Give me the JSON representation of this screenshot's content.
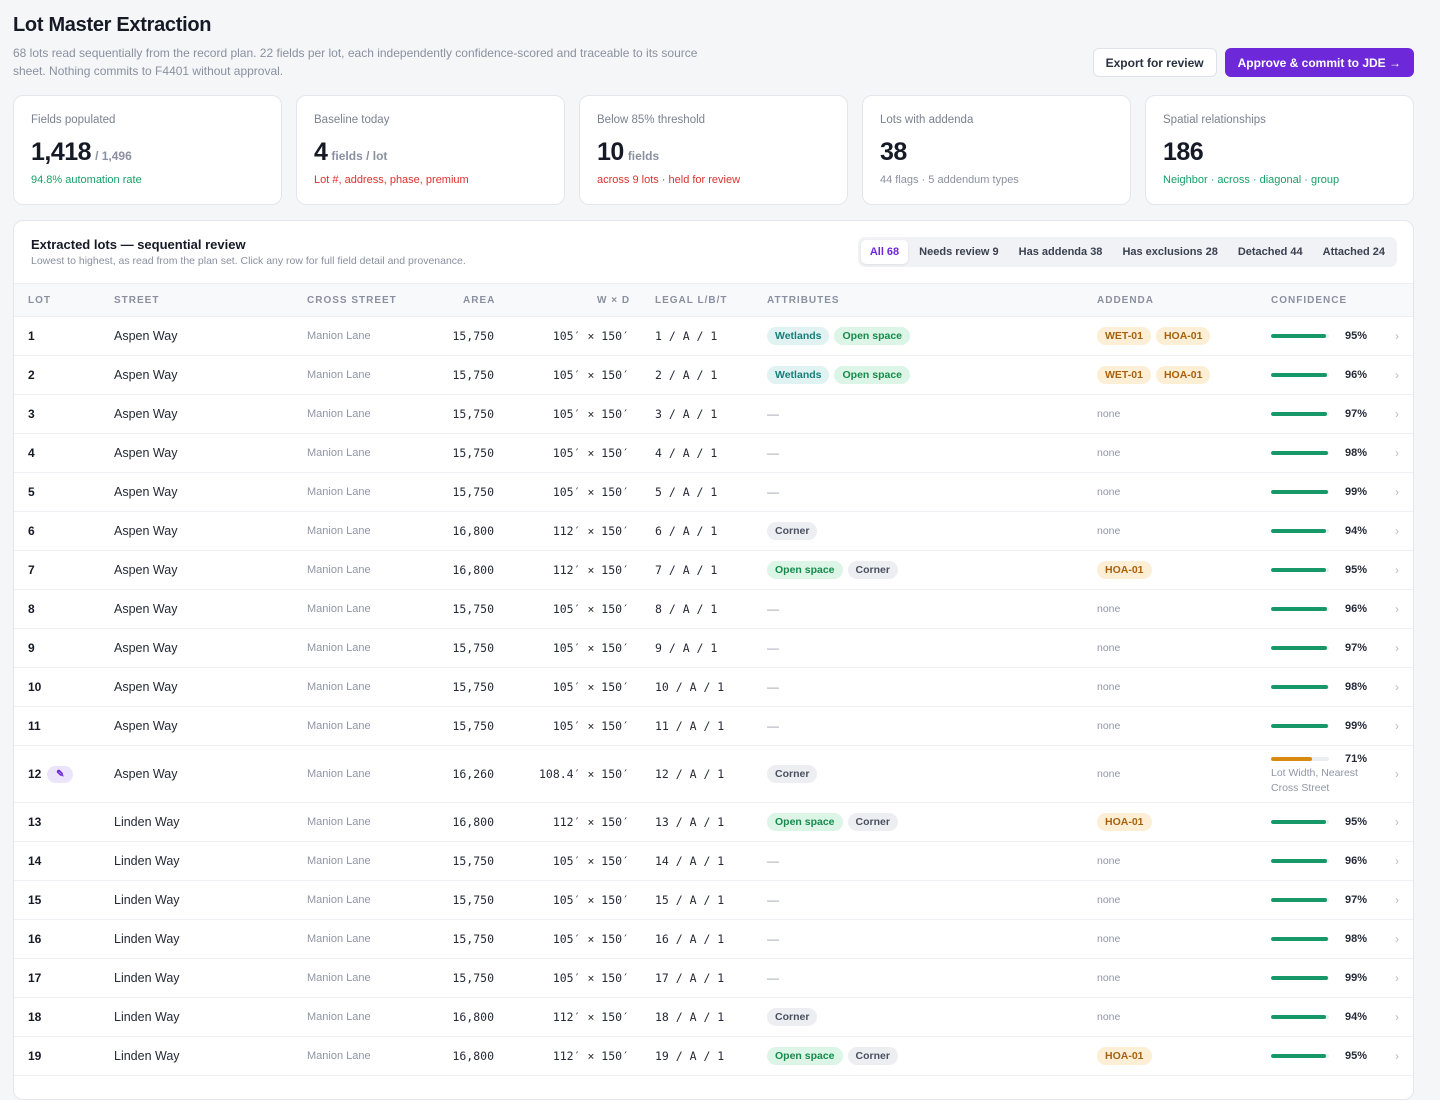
{
  "header": {
    "title": "Lot Master Extraction",
    "subtitle": "68 lots read sequentially from the record plan. 22 fields per lot, each independently confidence-scored and traceable to its source sheet. Nothing commits to F4401 without approval.",
    "export_label": "Export for review",
    "approve_label": "Approve & commit to JDE →"
  },
  "cards": [
    {
      "label": "Fields populated",
      "value": "1,418",
      "unit": "/ 1,496",
      "note": "94.8% automation rate",
      "tone": "green"
    },
    {
      "label": "Baseline today",
      "value": "4",
      "unit": "fields / lot",
      "note": "Lot #, address, phase, premium",
      "tone": "red"
    },
    {
      "label": "Below 85% threshold",
      "value": "10",
      "unit": "fields",
      "note": "across 9 lots · held for review",
      "tone": "red"
    },
    {
      "label": "Lots with addenda",
      "value": "38",
      "unit": "",
      "note": "44 flags · 5 addendum types",
      "tone": "gray"
    },
    {
      "label": "Spatial relationships",
      "value": "186",
      "unit": "",
      "note": "Neighbor · across · diagonal · group",
      "tone": "green"
    }
  ],
  "panel": {
    "title": "Extracted lots — sequential review",
    "subtitle": "Lowest to highest, as read from the plan set. Click any row for full field detail and provenance.",
    "filters": [
      "All 68",
      "Needs review 9",
      "Has addenda 38",
      "Has exclusions 28",
      "Detached 44",
      "Attached 24"
    ],
    "columns": {
      "lot": "LOT",
      "street": "STREET",
      "cross": "CROSS STREET",
      "area": "AREA",
      "wd": "W × D",
      "legal": "LEGAL L/B/T",
      "attributes": "ATTRIBUTES",
      "addenda": "ADDENDA",
      "confidence": "CONFIDENCE"
    }
  },
  "rows": [
    {
      "lot": "1",
      "street": "Aspen Way",
      "cross": "Manion Lane",
      "area": "15,750",
      "wd": "105′ × 150′",
      "legal": "1 / A / 1",
      "attributes": [
        "Wetlands",
        "Open space"
      ],
      "addenda": [
        "WET-01",
        "HOA-01"
      ],
      "confidence": 95
    },
    {
      "lot": "2",
      "street": "Aspen Way",
      "cross": "Manion Lane",
      "area": "15,750",
      "wd": "105′ × 150′",
      "legal": "2 / A / 1",
      "attributes": [
        "Wetlands",
        "Open space"
      ],
      "addenda": [
        "WET-01",
        "HOA-01"
      ],
      "confidence": 96
    },
    {
      "lot": "3",
      "street": "Aspen Way",
      "cross": "Manion Lane",
      "area": "15,750",
      "wd": "105′ × 150′",
      "legal": "3 / A / 1",
      "attributes": [],
      "addenda": [],
      "confidence": 97
    },
    {
      "lot": "4",
      "street": "Aspen Way",
      "cross": "Manion Lane",
      "area": "15,750",
      "wd": "105′ × 150′",
      "legal": "4 / A / 1",
      "attributes": [],
      "addenda": [],
      "confidence": 98
    },
    {
      "lot": "5",
      "street": "Aspen Way",
      "cross": "Manion Lane",
      "area": "15,750",
      "wd": "105′ × 150′",
      "legal": "5 / A / 1",
      "attributes": [],
      "addenda": [],
      "confidence": 99
    },
    {
      "lot": "6",
      "street": "Aspen Way",
      "cross": "Manion Lane",
      "area": "16,800",
      "wd": "112′ × 150′",
      "legal": "6 / A / 1",
      "attributes": [
        "Corner"
      ],
      "addenda": [],
      "confidence": 94
    },
    {
      "lot": "7",
      "street": "Aspen Way",
      "cross": "Manion Lane",
      "area": "16,800",
      "wd": "112′ × 150′",
      "legal": "7 / A / 1",
      "attributes": [
        "Open space",
        "Corner"
      ],
      "addenda": [
        "HOA-01"
      ],
      "confidence": 95
    },
    {
      "lot": "8",
      "street": "Aspen Way",
      "cross": "Manion Lane",
      "area": "15,750",
      "wd": "105′ × 150′",
      "legal": "8 / A / 1",
      "attributes": [],
      "addenda": [],
      "confidence": 96
    },
    {
      "lot": "9",
      "street": "Aspen Way",
      "cross": "Manion Lane",
      "area": "15,750",
      "wd": "105′ × 150′",
      "legal": "9 / A / 1",
      "attributes": [],
      "addenda": [],
      "confidence": 97
    },
    {
      "lot": "10",
      "street": "Aspen Way",
      "cross": "Manion Lane",
      "area": "15,750",
      "wd": "105′ × 150′",
      "legal": "10 / A / 1",
      "attributes": [],
      "addenda": [],
      "confidence": 98
    },
    {
      "lot": "11",
      "street": "Aspen Way",
      "cross": "Manion Lane",
      "area": "15,750",
      "wd": "105′ × 150′",
      "legal": "11 / A / 1",
      "attributes": [],
      "addenda": [],
      "confidence": 99
    },
    {
      "lot": "12",
      "street": "Aspen Way",
      "cross": "Manion Lane",
      "area": "16,260",
      "wd": "108.4′ × 150′",
      "legal": "12 / A / 1",
      "attributes": [
        "Corner"
      ],
      "addenda": [],
      "confidence": 71,
      "edited": true,
      "conf_note": "Lot Width, Nearest Cross Street"
    },
    {
      "lot": "13",
      "street": "Linden Way",
      "cross": "Manion Lane",
      "area": "16,800",
      "wd": "112′ × 150′",
      "legal": "13 / A / 1",
      "attributes": [
        "Open space",
        "Corner"
      ],
      "addenda": [
        "HOA-01"
      ],
      "confidence": 95
    },
    {
      "lot": "14",
      "street": "Linden Way",
      "cross": "Manion Lane",
      "area": "15,750",
      "wd": "105′ × 150′",
      "legal": "14 / A / 1",
      "attributes": [],
      "addenda": [],
      "confidence": 96
    },
    {
      "lot": "15",
      "street": "Linden Way",
      "cross": "Manion Lane",
      "area": "15,750",
      "wd": "105′ × 150′",
      "legal": "15 / A / 1",
      "attributes": [],
      "addenda": [],
      "confidence": 97
    },
    {
      "lot": "16",
      "street": "Linden Way",
      "cross": "Manion Lane",
      "area": "15,750",
      "wd": "105′ × 150′",
      "legal": "16 / A / 1",
      "attributes": [],
      "addenda": [],
      "confidence": 98
    },
    {
      "lot": "17",
      "street": "Linden Way",
      "cross": "Manion Lane",
      "area": "15,750",
      "wd": "105′ × 150′",
      "legal": "17 / A / 1",
      "attributes": [],
      "addenda": [],
      "confidence": 99
    },
    {
      "lot": "18",
      "street": "Linden Way",
      "cross": "Manion Lane",
      "area": "16,800",
      "wd": "112′ × 150′",
      "legal": "18 / A / 1",
      "attributes": [
        "Corner"
      ],
      "addenda": [],
      "confidence": 94
    },
    {
      "lot": "19",
      "street": "Linden Way",
      "cross": "Manion Lane",
      "area": "16,800",
      "wd": "112′ × 150′",
      "legal": "19 / A / 1",
      "attributes": [
        "Open space",
        "Corner"
      ],
      "addenda": [
        "HOA-01"
      ],
      "confidence": 95
    }
  ],
  "labels": {
    "empty_attributes": "—",
    "empty_addenda": "none",
    "chevron": "›",
    "edit_icon": "✎"
  },
  "colors": {
    "accent": "#6d28d9",
    "confidence_ok": "#169868",
    "confidence_warn": "#d88a10",
    "threshold": 85
  }
}
